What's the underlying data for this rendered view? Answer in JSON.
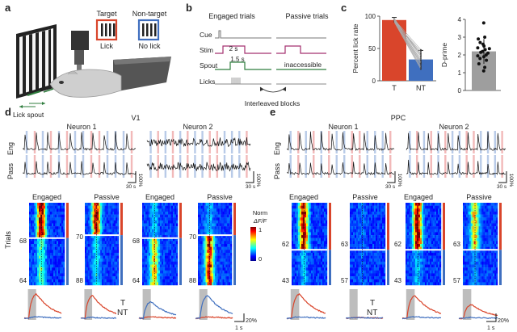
{
  "panels": {
    "a": {
      "letter": "a",
      "target_label": "Target",
      "nontarget_label": "Non-target",
      "lick_label": "Lick",
      "nolick_label": "No lick",
      "spout_label": "Lick spout"
    },
    "b": {
      "letter": "b",
      "engaged_title": "Engaged trials",
      "passive_title": "Passive trials",
      "rows": [
        "Cue",
        "Stim",
        "Spout",
        "Licks"
      ],
      "stim_duration": "2 s",
      "spout_duration": "1.5 s",
      "inaccessible": "inaccessible",
      "interleaved": "Interleaved blocks",
      "colors": {
        "cue": "#777777",
        "stim": "#a4306f",
        "spout": "#2f7d3e",
        "licks": "#888888"
      }
    },
    "c": {
      "letter": "c"
    },
    "d": {
      "letter": "d",
      "region": "V1",
      "neuron1": "Neuron 1",
      "neuron2": "Neuron 2",
      "row_eng": "Eng",
      "row_pass": "Pass",
      "scale_y": "100%",
      "scale_x": "30 s",
      "cond_engaged": "Engaged",
      "cond_passive": "Passive",
      "trials_label": "Trials",
      "counts": [
        "68",
        "64",
        "70",
        "88",
        "68",
        "64",
        "70",
        "88"
      ],
      "legend_T": "T",
      "legend_NT": "NT",
      "scale_t": "1 s",
      "scale_pct": "20%"
    },
    "e": {
      "letter": "e",
      "region": "PPC",
      "neuron1": "Neuron 1",
      "neuron2": "Neuron 2",
      "row_eng": "Eng",
      "row_pass": "Pass",
      "scale_y": "100%",
      "scale_x": "30 s",
      "cond_engaged": "Engaged",
      "cond_passive": "Passive",
      "counts": [
        "62",
        "43",
        "63",
        "57",
        "62",
        "43",
        "63",
        "57"
      ],
      "legend_T": "T",
      "legend_NT": "NT",
      "scale_t": "1 s",
      "scale_pct": "20%"
    }
  },
  "colorbar": {
    "title": "Norm",
    "subtitle": "ΔF/F",
    "max": "1",
    "min": "0"
  },
  "colors": {
    "target": "#d9452b",
    "nontarget": "#3f6fbf",
    "stripe_target": "#f2b9b9",
    "stripe_nontarget": "#b9cbe8",
    "gray": "#bdbdbd"
  },
  "chart_data": [
    {
      "type": "bar",
      "title": "",
      "categories": [
        "T",
        "NT"
      ],
      "values": [
        94,
        33
      ],
      "errors": [
        4,
        14
      ],
      "ylabel": "Percent lick rate",
      "ylim": [
        0,
        100
      ],
      "yticks": [
        "0",
        "50",
        "100"
      ],
      "paired_points": [
        [
          95,
          40
        ],
        [
          93,
          22
        ],
        [
          96,
          30
        ],
        [
          92,
          45
        ],
        [
          94,
          28
        ],
        [
          97,
          35
        ],
        [
          91,
          18
        ],
        [
          95,
          48
        ],
        [
          93,
          25
        ],
        [
          96,
          38
        ],
        [
          94,
          42
        ],
        [
          92,
          20
        ],
        [
          95,
          32
        ],
        [
          93,
          27
        ]
      ],
      "bar_colors": [
        "#d9452b",
        "#3f6fbf"
      ]
    },
    {
      "type": "scatter",
      "title": "",
      "categories": [
        ""
      ],
      "bar_value": 2.2,
      "error": 0.7,
      "ylabel": "D-prime",
      "ylim": [
        0,
        4
      ],
      "yticks": [
        "0",
        "1",
        "2",
        "3",
        "4"
      ],
      "points": [
        3.8,
        3.0,
        2.9,
        2.7,
        2.6,
        2.5,
        2.4,
        2.35,
        2.3,
        2.2,
        2.15,
        2.1,
        2.0,
        1.95,
        1.9,
        1.8,
        1.7,
        1.5,
        1.3,
        1.1
      ]
    }
  ]
}
